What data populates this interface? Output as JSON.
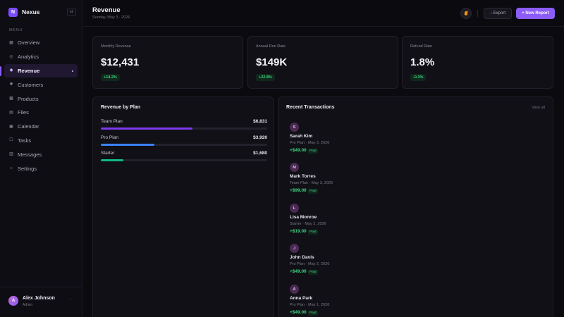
{
  "brand": {
    "logo_letter": "N",
    "name": "Nexus",
    "version": "v2"
  },
  "sidebar": {
    "menu_label": "MENU",
    "items": [
      {
        "label": "Overview",
        "icon": "grid-icon"
      },
      {
        "label": "Analytics",
        "icon": "analytics-icon"
      },
      {
        "label": "Revenue",
        "icon": "diamond-icon",
        "active": true
      },
      {
        "label": "Customers",
        "icon": "users-icon"
      },
      {
        "label": "Products",
        "icon": "box-icon"
      },
      {
        "label": "Files",
        "icon": "file-icon"
      },
      {
        "label": "Calendar",
        "icon": "calendar-icon"
      },
      {
        "label": "Tasks",
        "icon": "tasks-icon"
      },
      {
        "label": "Messages",
        "icon": "message-icon"
      },
      {
        "label": "Settings",
        "icon": "gear-icon"
      }
    ],
    "user": {
      "initial": "A",
      "name": "Alex Johnson",
      "role": "Admin",
      "more": "···"
    }
  },
  "header": {
    "title": "Revenue",
    "date": "Sunday, May 3 · 2026",
    "export_label": "↓ Export",
    "new_report_label": "+ New Report"
  },
  "stats": [
    {
      "label": "Monthly Revenue",
      "value": "$12,431",
      "change": "+14.2%"
    },
    {
      "label": "Annual Run Rate",
      "value": "$149K",
      "change": "+22.8%"
    },
    {
      "label": "Refund Rate",
      "value": "1.8%",
      "change": "-0.3%"
    }
  ],
  "revenue_by_plan": {
    "title": "Revenue by Plan",
    "plans": [
      {
        "name": "Team Plan",
        "amount": "$6,831",
        "share": 0.55,
        "color": "#7c3aed"
      },
      {
        "name": "Pro Plan",
        "amount": "$3,920",
        "share": 0.32,
        "color": "#3b82f6"
      },
      {
        "name": "Starter",
        "amount": "$1,680",
        "share": 0.135,
        "color": "#10b981"
      }
    ]
  },
  "transactions": {
    "title": "Recent Transactions",
    "view_all": "View all",
    "items": [
      {
        "initial": "S",
        "name": "Sarah Kim",
        "meta": "Pro Plan · May 3, 2026",
        "amount": "+$49.00",
        "status": "Paid"
      },
      {
        "initial": "M",
        "name": "Mark Torres",
        "meta": "Team Plan · May 3, 2026",
        "amount": "+$99.00",
        "status": "Paid"
      },
      {
        "initial": "L",
        "name": "Lisa Monroe",
        "meta": "Starter · May 2, 2026",
        "amount": "+$19.00",
        "status": "Paid"
      },
      {
        "initial": "J",
        "name": "John Davis",
        "meta": "Pro Plan · May 2, 2026",
        "amount": "+$49.00",
        "status": "Paid"
      },
      {
        "initial": "A",
        "name": "Anna Park",
        "meta": "Pro Plan · May 1, 2026",
        "amount": "+$49.00",
        "status": "Paid"
      }
    ]
  },
  "colors": {
    "accent": "#8b5cf6",
    "positive": "#3ed684",
    "background": "#0b0a0f"
  }
}
